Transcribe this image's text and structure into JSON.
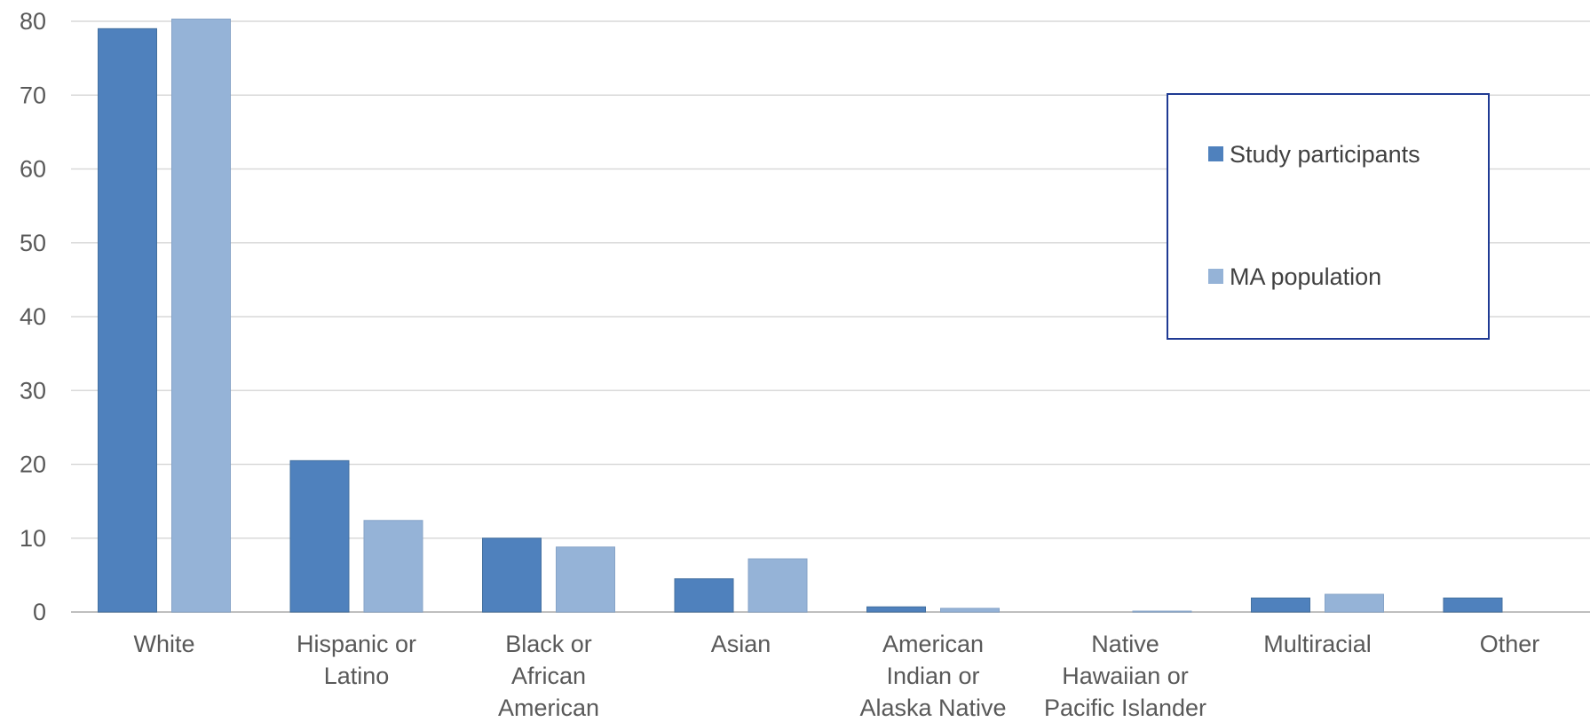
{
  "chart_data": {
    "type": "bar",
    "title": "",
    "xlabel": "",
    "ylabel": "",
    "ylim": [
      0,
      80
    ],
    "yticks": [
      0,
      10,
      20,
      30,
      40,
      50,
      60,
      70,
      80
    ],
    "grid": true,
    "legend_position": "top-right",
    "categories": [
      [
        "White"
      ],
      [
        "Hispanic or",
        "Latino"
      ],
      [
        "Black or",
        "African",
        "American"
      ],
      [
        "Asian"
      ],
      [
        "American",
        "Indian or",
        "Alaska Native"
      ],
      [
        "Native",
        "Hawaiian or",
        "Pacific Islander"
      ],
      [
        "Multiracial"
      ],
      [
        "Other"
      ]
    ],
    "series": [
      {
        "name": "Study participants",
        "color": "#4f81bd",
        "values": [
          79,
          20.5,
          10,
          4.5,
          0.7,
          0,
          1.9,
          1.9
        ]
      },
      {
        "name": "MA population",
        "color": "#95b3d7",
        "values": [
          80.3,
          12.4,
          8.8,
          7.2,
          0.5,
          0.1,
          2.4,
          null
        ]
      }
    ]
  },
  "colors": {
    "grid": "#d9d9d9",
    "axis": "#bfbfbf",
    "legend_border": "#1f3a93"
  }
}
